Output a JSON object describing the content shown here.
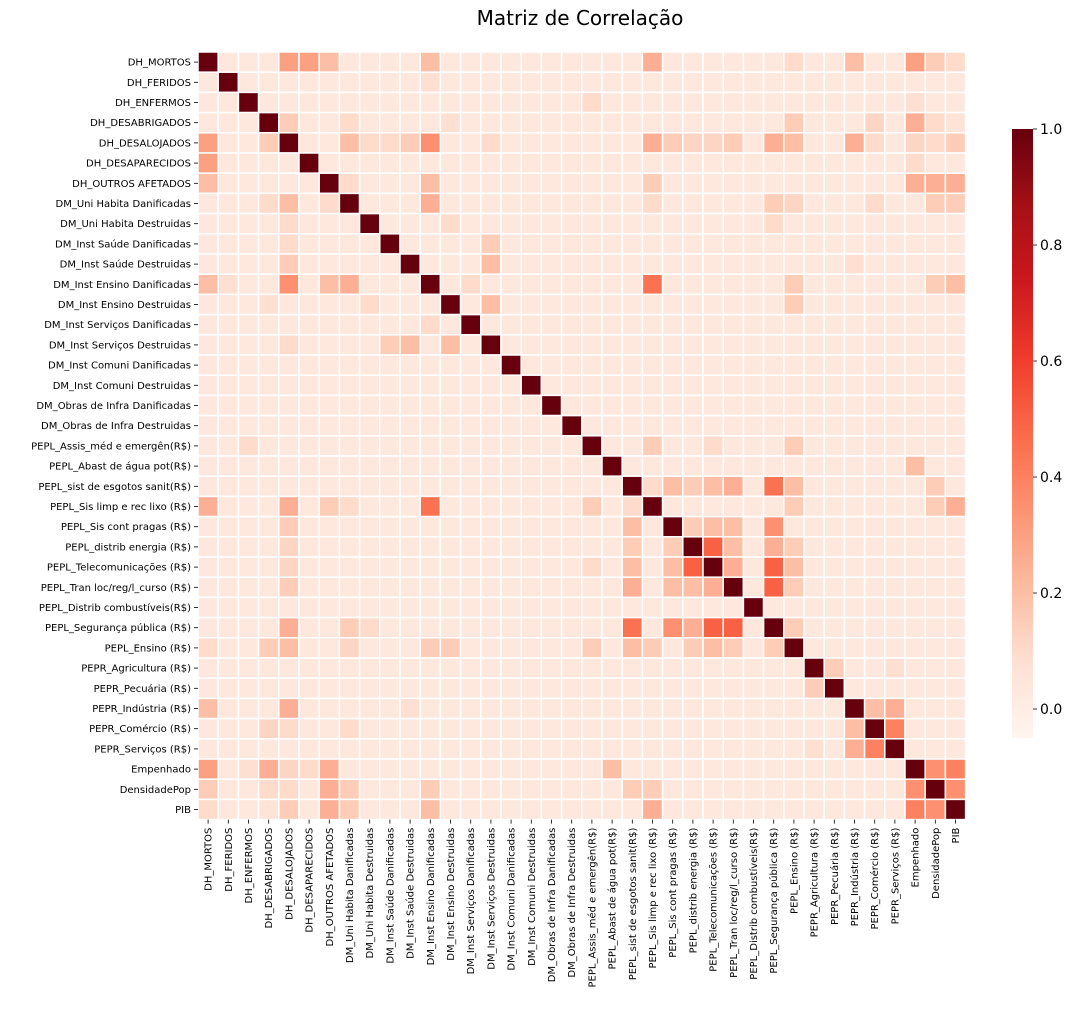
{
  "chart_data": {
    "type": "heatmap",
    "title": "Matriz de Correlação",
    "labels": [
      "DH_MORTOS",
      "DH_FERIDOS",
      "DH_ENFERMOS",
      "DH_DESABRIGADOS",
      "DH_DESALOJADOS",
      "DH_DESAPARECIDOS",
      "DH_OUTROS AFETADOS",
      "DM_Uni Habita Danificadas",
      "DM_Uni Habita Destruidas",
      "DM_Inst Saúde Danificadas",
      "DM_Inst Saúde Destruidas",
      "DM_Inst Ensino Danificadas",
      "DM_Inst Ensino Destruidas",
      "DM_Inst Serviços Danificadas",
      "DM_Inst Serviços Destruidas",
      "DM_Inst Comuni Danificadas",
      "DM_Inst Comuni Destruidas",
      "DM_Obras de Infra Danificadas",
      "DM_Obras de Infra Destruidas",
      "PEPL_Assis_méd e emergên(R$)",
      "PEPL_Abast de água pot(R$)",
      "PEPL_sist de esgotos sanit(R$)",
      "PEPL_Sis limp e rec lixo (R$)",
      "PEPL_Sis cont pragas (R$)",
      "PEPL_distrib energia (R$)",
      "PEPL_Telecomunicações (R$)",
      "PEPL_Tran loc/reg/l_curso (R$)",
      "PEPL_Distrib combustíveis(R$)",
      "PEPL_Segurança pública (R$)",
      "PEPL_Ensino (R$)",
      "PEPR_Agricultura (R$)",
      "PEPR_Pecuária (R$)",
      "PEPR_Indústria (R$)",
      "PEPR_Comércio (R$)",
      "PEPR_Serviços (R$)",
      "Empenhado",
      "DensidadePop",
      "PIB"
    ],
    "base_value": 0.03,
    "correlations": [
      [
        0,
        4,
        0.3
      ],
      [
        0,
        5,
        0.3
      ],
      [
        0,
        6,
        0.2
      ],
      [
        0,
        11,
        0.2
      ],
      [
        0,
        22,
        0.25
      ],
      [
        0,
        29,
        0.1
      ],
      [
        0,
        32,
        0.2
      ],
      [
        0,
        35,
        0.3
      ],
      [
        0,
        36,
        0.15
      ],
      [
        0,
        37,
        0.1
      ],
      [
        1,
        11,
        0.08
      ],
      [
        2,
        19,
        0.1
      ],
      [
        2,
        35,
        0.08
      ],
      [
        3,
        4,
        0.15
      ],
      [
        3,
        7,
        0.1
      ],
      [
        3,
        12,
        0.08
      ],
      [
        3,
        29,
        0.15
      ],
      [
        3,
        33,
        0.12
      ],
      [
        3,
        35,
        0.25
      ],
      [
        3,
        36,
        0.1
      ],
      [
        3,
        37,
        0.06
      ],
      [
        4,
        7,
        0.2
      ],
      [
        4,
        8,
        0.1
      ],
      [
        4,
        9,
        0.1
      ],
      [
        4,
        10,
        0.15
      ],
      [
        4,
        11,
        0.35
      ],
      [
        4,
        14,
        0.1
      ],
      [
        4,
        22,
        0.25
      ],
      [
        4,
        23,
        0.15
      ],
      [
        4,
        24,
        0.12
      ],
      [
        4,
        25,
        0.12
      ],
      [
        4,
        26,
        0.15
      ],
      [
        4,
        28,
        0.25
      ],
      [
        4,
        29,
        0.2
      ],
      [
        4,
        32,
        0.25
      ],
      [
        4,
        33,
        0.1
      ],
      [
        4,
        35,
        0.12
      ],
      [
        4,
        36,
        0.1
      ],
      [
        4,
        37,
        0.15
      ],
      [
        5,
        35,
        0.1
      ],
      [
        6,
        7,
        0.1
      ],
      [
        6,
        11,
        0.2
      ],
      [
        6,
        22,
        0.15
      ],
      [
        6,
        35,
        0.25
      ],
      [
        6,
        36,
        0.25
      ],
      [
        6,
        37,
        0.25
      ],
      [
        7,
        11,
        0.25
      ],
      [
        7,
        22,
        0.1
      ],
      [
        7,
        28,
        0.15
      ],
      [
        7,
        29,
        0.12
      ],
      [
        7,
        33,
        0.1
      ],
      [
        7,
        36,
        0.15
      ],
      [
        7,
        37,
        0.15
      ],
      [
        8,
        12,
        0.1
      ],
      [
        8,
        28,
        0.1
      ],
      [
        9,
        14,
        0.15
      ],
      [
        10,
        14,
        0.2
      ],
      [
        10,
        32,
        0.08
      ],
      [
        11,
        22,
        0.45
      ],
      [
        11,
        13,
        0.1
      ],
      [
        11,
        29,
        0.15
      ],
      [
        11,
        36,
        0.15
      ],
      [
        11,
        37,
        0.2
      ],
      [
        12,
        14,
        0.2
      ],
      [
        12,
        29,
        0.15
      ],
      [
        19,
        22,
        0.15
      ],
      [
        19,
        25,
        0.1
      ],
      [
        19,
        29,
        0.15
      ],
      [
        20,
        35,
        0.2
      ],
      [
        21,
        22,
        0.1
      ],
      [
        21,
        23,
        0.2
      ],
      [
        21,
        24,
        0.15
      ],
      [
        21,
        25,
        0.2
      ],
      [
        21,
        26,
        0.25
      ],
      [
        21,
        28,
        0.45
      ],
      [
        21,
        29,
        0.2
      ],
      [
        21,
        36,
        0.15
      ],
      [
        22,
        29,
        0.15
      ],
      [
        22,
        36,
        0.15
      ],
      [
        22,
        37,
        0.25
      ],
      [
        23,
        24,
        0.15
      ],
      [
        23,
        25,
        0.2
      ],
      [
        23,
        26,
        0.2
      ],
      [
        23,
        28,
        0.35
      ],
      [
        24,
        25,
        0.5
      ],
      [
        24,
        26,
        0.2
      ],
      [
        24,
        28,
        0.25
      ],
      [
        24,
        29,
        0.15
      ],
      [
        25,
        26,
        0.25
      ],
      [
        25,
        28,
        0.5
      ],
      [
        25,
        29,
        0.2
      ],
      [
        26,
        28,
        0.5
      ],
      [
        26,
        29,
        0.15
      ],
      [
        28,
        29,
        0.15
      ],
      [
        30,
        31,
        0.15
      ],
      [
        30,
        34,
        0.08
      ],
      [
        32,
        33,
        0.2
      ],
      [
        32,
        34,
        0.25
      ],
      [
        33,
        34,
        0.4
      ],
      [
        35,
        36,
        0.35
      ],
      [
        35,
        37,
        0.4
      ],
      [
        36,
        37,
        0.35
      ]
    ],
    "colorbar": {
      "min": -0.05,
      "max": 1.0,
      "ticks": [
        "1.0",
        "0.8",
        "0.6",
        "0.4",
        "0.2",
        "0.0"
      ],
      "tick_values": [
        1.0,
        0.8,
        0.6,
        0.4,
        0.2,
        0.0
      ],
      "colormap": "Reds"
    },
    "grid": true
  }
}
